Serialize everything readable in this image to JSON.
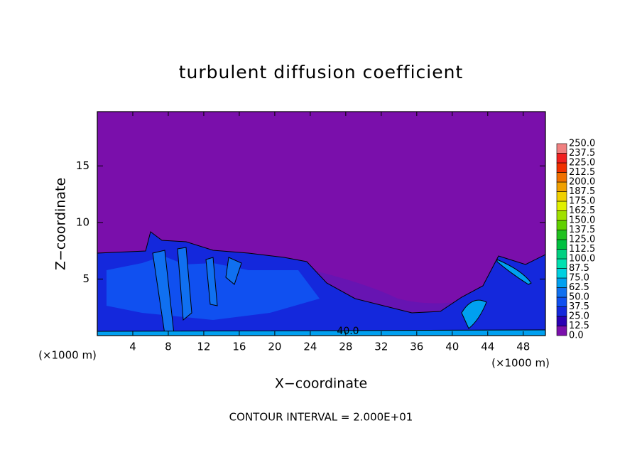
{
  "chart_data": {
    "type": "contour",
    "title": "turbulent diffusion coefficient",
    "xlabel": "X−coordinate",
    "ylabel": "Z−coordinate",
    "x_unit": "(×1000 m)",
    "xlim": [
      0,
      50.5
    ],
    "ylim": [
      0,
      19.8
    ],
    "xticks": [
      4,
      8,
      12,
      16,
      20,
      24,
      28,
      32,
      36,
      40,
      44,
      48
    ],
    "yticks": [
      5,
      10,
      15
    ],
    "contour_label": "40.0",
    "footer": "CONTOUR INTERVAL = 2.000E+01",
    "colorbar": {
      "levels": [
        {
          "value": 0,
          "label": "0.0"
        },
        {
          "value": 12.5,
          "label": "12.5"
        },
        {
          "value": 25,
          "label": "25.0"
        },
        {
          "value": 37.5,
          "label": "37.5"
        },
        {
          "value": 50,
          "label": "50.0"
        },
        {
          "value": 62.5,
          "label": "62.5"
        },
        {
          "value": 75,
          "label": "75.0"
        },
        {
          "value": 87.5,
          "label": "87.5"
        },
        {
          "value": 100,
          "label": "100.0"
        },
        {
          "value": 112.5,
          "label": "112.5"
        },
        {
          "value": 125,
          "label": "125.0"
        },
        {
          "value": 137.5,
          "label": "137.5"
        },
        {
          "value": 150,
          "label": "150.0"
        },
        {
          "value": 162.5,
          "label": "162.5"
        },
        {
          "value": 175,
          "label": "175.0"
        },
        {
          "value": 187.5,
          "label": "187.5"
        },
        {
          "value": 200,
          "label": "200.0"
        },
        {
          "value": 212.5,
          "label": "212.5"
        },
        {
          "value": 225,
          "label": "225.0"
        },
        {
          "value": 237.5,
          "label": "237.5"
        },
        {
          "value": 250,
          "label": "250.0"
        }
      ],
      "colors": [
        "#7a0fab",
        "#2a00b4",
        "#1428dc",
        "#1050f0",
        "#1070f0",
        "#00a0f0",
        "#00d0e0",
        "#00e0b0",
        "#00d080",
        "#00c040",
        "#20c020",
        "#60d000",
        "#a0e000",
        "#e0f000",
        "#f0d000",
        "#f0a000",
        "#f07000",
        "#f03000",
        "#f02020",
        "#f08080"
      ]
    }
  }
}
